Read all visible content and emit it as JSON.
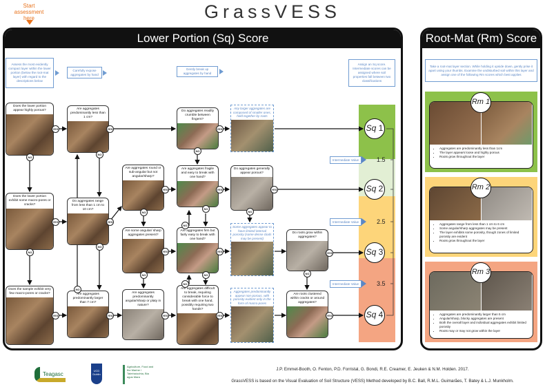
{
  "title": "GrassVESS",
  "start_label": "Start assessment here",
  "colors": {
    "accent_orange": "#e8731d",
    "instruction_blue": "#5b87c5",
    "sq1": "#8dc14a",
    "sq2": "#e2efd4",
    "sq3": "#fdd57a",
    "sq4": "#f4a582"
  },
  "lower": {
    "heading": "Lower Portion (Sq) Score",
    "instructions": [
      "Assess the most evidently compact layer within the lower portion (below the root-mat layer) with regard to the descriptions below",
      "Carefully expose aggregates by hand",
      "Gently break up aggregates by hand",
      "Assign an Sq score. Intermediate scores can be assigned where soil properties fall between two classifications"
    ],
    "questions": {
      "porous": "Does the lower portion appear highly porous?",
      "macropores": "Does the lower portion exhibit some macro-pores or cracks?",
      "fewpores": "Does the sample exhibit very few macro-pores or cracks?",
      "lt1": "Are aggregates predominantly less than 1 cm?",
      "range": "Do aggregates range from less than 1 cm to 10 cm?",
      "gt7": "Are aggregates predominantly larger than 7 cm?",
      "round": "Are aggregates round or sub-angular but not angular/sharp?",
      "someangular": "Are some angular/ sharp aggregates present?",
      "platy": "Are aggregates predominantly angular/sharp or platy in nature?",
      "crumble": "Do aggregates readily crumble between fingers?",
      "fragile": "Are aggregates fragile and easy to break with one hand?",
      "firm": "Are aggregates firm but fairly easy to break with one hand?",
      "difficult": "Are aggregates difficult to break, requiring considerable force to break with one hand, possibly requiring two hands?",
      "appearporous": "Do aggregates generally appear porous?",
      "rootswithin": "Do roots grow within aggregates?",
      "rootsclustered": "Are roots clustered within cracks or around aggregates?"
    },
    "notes": {
      "larger": "Any larger aggregates are composed of smaller ones, held together by roots",
      "limited": "Some aggregates appear to have limited internal porosity (some dense clods may be present)",
      "nonporous": "Aggregates predominantly appear non-porous, with porosity evident only in the form of macro-pores"
    },
    "yes": "YES",
    "no": "NO",
    "scores": [
      {
        "prefix": "Sq",
        "value": "1"
      },
      {
        "prefix": "Sq",
        "value": "2"
      },
      {
        "prefix": "Sq",
        "value": "3"
      },
      {
        "prefix": "Sq",
        "value": "4"
      }
    ],
    "intermediate_label": "Intermediate Value",
    "intermediate_values": [
      "1.5",
      "2.5",
      "3.5"
    ]
  },
  "rootmat": {
    "heading": "Root-Mat (Rm) Score",
    "instruction": "Take a root-mat layer section. While holding it upside down, gently prise it apart using your thumbs. Examine the undisturbed soil within this layer and assign one of the following Rm scores which best applies",
    "scores": [
      {
        "label": "Rm 1",
        "bullets": [
          "Aggregates are predominantly less than 1cm",
          "The layer appears loose and highly porous",
          "Roots grow throughout the layer"
        ]
      },
      {
        "label": "Rm 2",
        "bullets": [
          "Aggregates range from less than 1 cm to 6 cm",
          "Some angular/sharp aggregates may be present",
          "The layer exhibits some porosity, though zones of limited porosity are evident",
          "Roots grow throughout the layer"
        ]
      },
      {
        "label": "Rm 3",
        "bullets": [
          "Aggregates are predominantly larger than 5 cm",
          "Angular/sharp, blocky aggregates are present",
          "Both the overall layer and individual aggregates exhibit limited porosity",
          "Roots may or may not grow within the layer"
        ]
      }
    ]
  },
  "footer": {
    "authors": "J.P. Emmet-Booth, O. Fenton, P.D. Forristal, G. Bondi, R.E. Creamer, E. Jeuken & N.M. Holden. 2017.",
    "basis": "GrassVESS is based on the Visual Evaluation of Soil Structure (VESS) Method developed by B.C. Ball, R.M.L. Guimarães, T. Batey & L.J. Munkholm.",
    "logos": [
      "Teagasc",
      "UCD Dublin",
      "Agriculture, Food and the Marine / Talmhaíochta, Bia agus Mara"
    ]
  }
}
